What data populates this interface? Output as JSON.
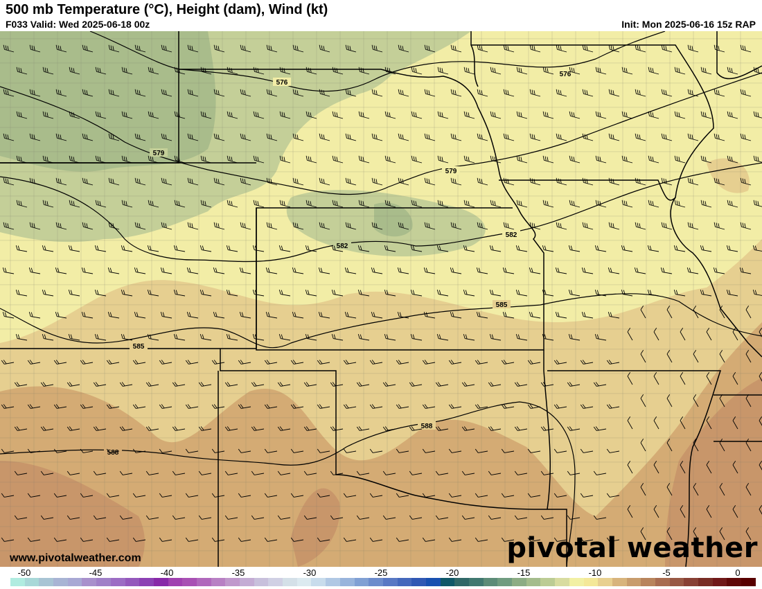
{
  "header": {
    "title": "500 mb Temperature (°C), Height (dam), Wind (kt)",
    "valid": "F033 Valid: Wed 2025-06-18 00z",
    "init": "Init: Mon 2025-06-16 15z RAP"
  },
  "map": {
    "contour_labels": [
      "576",
      "576",
      "579",
      "579",
      "582",
      "582",
      "585",
      "585",
      "588",
      "588"
    ],
    "fill_colors": {
      "green": "#a9bc8b",
      "light_green": "#c4cf98",
      "yellow": "#f2eda6",
      "tan": "#e6cf90",
      "brown": "#d4ab74",
      "dark_brown": "#c8966a"
    }
  },
  "footer": {
    "website": "www.pivotalweather.com",
    "logo": "pivotal weather"
  },
  "colorbar": {
    "unit": "°C",
    "tick_labels": [
      "-50",
      "-45",
      "-40",
      "-35",
      "-30",
      "-25",
      "-20",
      "-15",
      "-10",
      "-5",
      "0"
    ],
    "colors": [
      "#b0ece0",
      "#a8d8d8",
      "#a8c4d4",
      "#a8b4d4",
      "#a8a8d4",
      "#a890cc",
      "#a080c8",
      "#9c6cc4",
      "#9458bc",
      "#8c40b4",
      "#8828a8",
      "#a040b0",
      "#a850b4",
      "#b068bc",
      "#b880c4",
      "#c098cc",
      "#c4acd4",
      "#c8c0dc",
      "#d0d0e4",
      "#d4e0e8",
      "#dceaf0",
      "#c8dcec",
      "#b0c8e4",
      "#98b4dc",
      "#80a0d4",
      "#6c8ccc",
      "#5878c4",
      "#4468bc",
      "#3058b4",
      "#1850b0",
      "#105868",
      "#306868",
      "#407870",
      "#5c8c78",
      "#709c80",
      "#8cac84",
      "#a4bc8c",
      "#bccc94",
      "#d8dca0",
      "#f2f0a4",
      "#f4e898",
      "#e8d090",
      "#d8b47c",
      "#c89c6c",
      "#b8845c",
      "#a86c50",
      "#985844",
      "#884034",
      "#782c24",
      "#701818",
      "#600808",
      "#580000"
    ]
  }
}
